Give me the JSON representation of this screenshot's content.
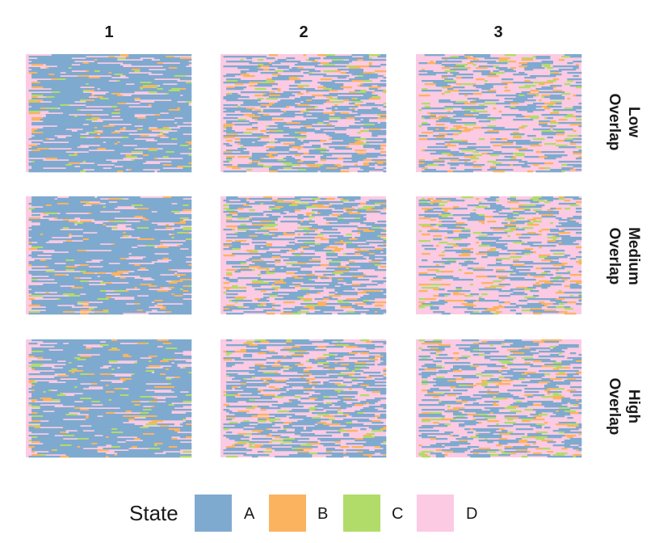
{
  "chart_data": {
    "type": "heatmap",
    "description_free": true,
    "facet_columns": [
      "1",
      "2",
      "3"
    ],
    "facet_rows": [
      [
        "Low",
        "Overlap"
      ],
      [
        "Medium",
        "Overlap"
      ],
      [
        "High",
        "Overlap"
      ]
    ],
    "legend": {
      "title": "State",
      "position": "bottom",
      "entries": [
        {
          "label": "A",
          "color": "#7FAACF"
        },
        {
          "label": "B",
          "color": "#FBB360"
        },
        {
          "label": "C",
          "color": "#B1DC69"
        },
        {
          "label": "D",
          "color": "#FCCAE3"
        }
      ]
    },
    "states": [
      "A",
      "B",
      "C",
      "D"
    ],
    "grid": false,
    "state_proportions": [
      [
        {
          "A": 0.62,
          "B": 0.12,
          "C": 0.06,
          "D": 0.2
        },
        {
          "A": 0.38,
          "B": 0.13,
          "C": 0.06,
          "D": 0.43
        },
        {
          "A": 0.22,
          "B": 0.12,
          "C": 0.08,
          "D": 0.58
        }
      ],
      [
        {
          "A": 0.62,
          "B": 0.12,
          "C": 0.06,
          "D": 0.2
        },
        {
          "A": 0.38,
          "B": 0.13,
          "C": 0.06,
          "D": 0.43
        },
        {
          "A": 0.22,
          "B": 0.12,
          "C": 0.08,
          "D": 0.58
        }
      ],
      [
        {
          "A": 0.58,
          "B": 0.13,
          "C": 0.08,
          "D": 0.21
        },
        {
          "A": 0.4,
          "B": 0.13,
          "C": 0.07,
          "D": 0.4
        },
        {
          "A": 0.28,
          "B": 0.12,
          "C": 0.08,
          "D": 0.52
        }
      ]
    ]
  }
}
